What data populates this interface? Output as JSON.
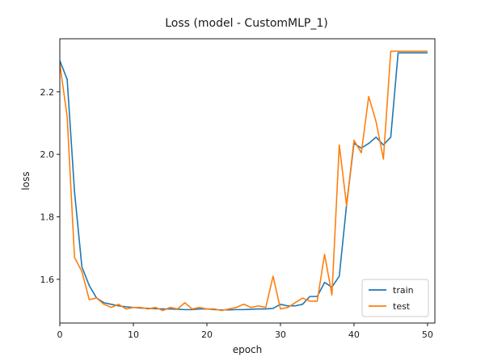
{
  "chart_data": {
    "type": "line",
    "title": "Loss (model - CustomMLP_1)",
    "xlabel": "epoch",
    "ylabel": "loss",
    "xlim": [
      0,
      51
    ],
    "ylim": [
      1.46,
      2.37
    ],
    "xticks": [
      0,
      10,
      20,
      30,
      40,
      50
    ],
    "yticks": [
      1.6,
      1.8,
      2.0,
      2.2
    ],
    "xtick_labels": [
      "0",
      "10",
      "20",
      "30",
      "40",
      "50"
    ],
    "ytick_labels": [
      "1.6",
      "1.8",
      "2.0",
      "2.2"
    ],
    "grid": false,
    "legend_position": "lower-right",
    "colors": {
      "train": "#1f77b4",
      "test": "#ff7f0e"
    },
    "x": [
      0,
      1,
      2,
      3,
      4,
      5,
      6,
      7,
      8,
      9,
      10,
      11,
      12,
      13,
      14,
      15,
      16,
      17,
      18,
      19,
      20,
      21,
      22,
      23,
      24,
      25,
      26,
      27,
      28,
      29,
      30,
      31,
      32,
      33,
      34,
      35,
      36,
      37,
      38,
      39,
      40,
      41,
      42,
      43,
      44,
      45,
      46,
      47,
      48,
      49,
      50
    ],
    "series": [
      {
        "name": "train",
        "values": [
          2.3,
          2.24,
          1.88,
          1.64,
          1.58,
          1.54,
          1.525,
          1.52,
          1.515,
          1.512,
          1.51,
          1.508,
          1.507,
          1.506,
          1.505,
          1.505,
          1.504,
          1.503,
          1.503,
          1.505,
          1.505,
          1.503,
          1.502,
          1.502,
          1.503,
          1.503,
          1.504,
          1.505,
          1.505,
          1.507,
          1.52,
          1.515,
          1.515,
          1.52,
          1.545,
          1.545,
          1.59,
          1.575,
          1.61,
          1.84,
          2.035,
          2.02,
          2.035,
          2.055,
          2.03,
          2.055,
          2.325,
          2.325,
          2.325,
          2.325,
          2.325
        ]
      },
      {
        "name": "test",
        "values": [
          2.29,
          2.12,
          1.67,
          1.625,
          1.535,
          1.54,
          1.52,
          1.51,
          1.52,
          1.505,
          1.51,
          1.51,
          1.505,
          1.51,
          1.5,
          1.51,
          1.505,
          1.525,
          1.505,
          1.51,
          1.505,
          1.505,
          1.5,
          1.505,
          1.51,
          1.52,
          1.51,
          1.515,
          1.51,
          1.61,
          1.505,
          1.51,
          1.525,
          1.54,
          1.53,
          1.53,
          1.68,
          1.55,
          2.03,
          1.835,
          2.045,
          2.005,
          2.185,
          2.105,
          1.985,
          2.33,
          2.33,
          2.33,
          2.33,
          2.33,
          2.33
        ]
      }
    ]
  }
}
